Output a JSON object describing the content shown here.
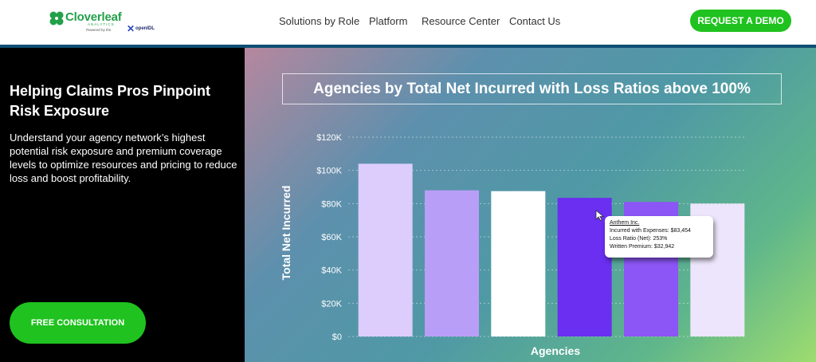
{
  "header": {
    "logo": {
      "name": "Cloverleaf",
      "subtitle": "ANALYTICS",
      "powered": "Powered by the",
      "partner": "openIDL"
    },
    "nav": [
      "Solutions by Role",
      "Platform",
      "Resource Center",
      "Contact Us"
    ],
    "cta": "REQUEST A DEMO"
  },
  "hero": {
    "title": "Helping Claims Pros Pinpoint Risk Exposure",
    "description": "Understand your agency network’s highest potential risk exposure and premium coverage levels to optimize resources and pricing to reduce loss and boost profitability.",
    "cta": "FREE CONSULTATION"
  },
  "colors": {
    "brand_green": "#1fc21f",
    "bar_highlight": "#6a2ff0"
  },
  "tooltip": {
    "name": "Anthem Inc.",
    "incurred": "Incurred with Expenses: $83,454",
    "loss_ratio": "Loss Ratio (Net): 253%",
    "premium": "Written Premium: $32,942"
  },
  "chart_data": {
    "type": "bar",
    "title": "Agencies by Total Net Incurred with Loss Ratios above 100%",
    "xlabel": "Agencies",
    "ylabel": "Total Net Incurred",
    "ylim": [
      0,
      120000
    ],
    "ticks": [
      "$0",
      "$20K",
      "$40K",
      "$60K",
      "$80K",
      "$100K",
      "$120K"
    ],
    "values": [
      104000,
      88000,
      87500,
      83454,
      81000,
      80000
    ],
    "bar_colors": [
      "#dccdfd",
      "#b99ef7",
      "#ffffff",
      "#6a2ff0",
      "#8c55f5",
      "#ece5fb"
    ],
    "grid": true
  }
}
